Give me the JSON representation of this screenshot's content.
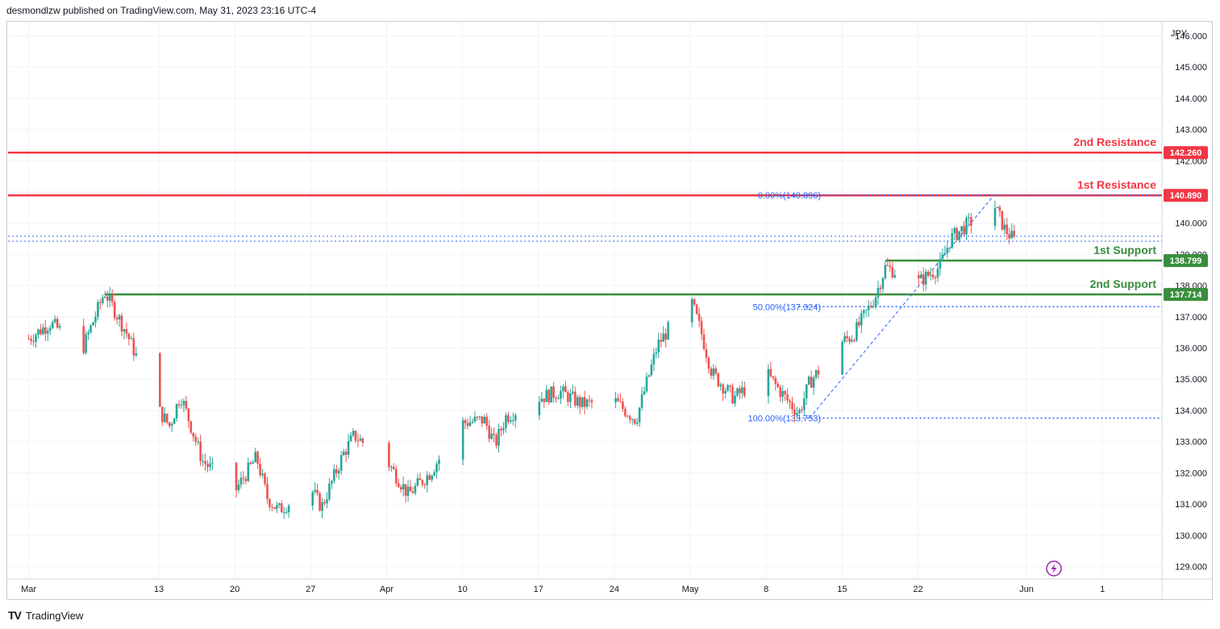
{
  "header": {
    "text": "desmondlzw published on TradingView.com, May 31, 2023 23:16 UTC-4"
  },
  "footer": {
    "logo_icon": "tradingview-logo-icon",
    "brand": "TradingView"
  },
  "colors": {
    "up": "#26a69a",
    "down": "#ef5350",
    "resistance": "#f23645",
    "support": "#388e3c",
    "fib": "#2962ff",
    "grid": "#f0f3fa",
    "text": "#131722"
  },
  "chart_data": {
    "type": "candlestick",
    "symbol_currency": "JPY",
    "ylim": [
      128.6,
      146.45
    ],
    "y_ticks": [
      "146.000",
      "145.000",
      "144.000",
      "143.000",
      "142.000",
      "141.000",
      "140.000",
      "139.000",
      "138.000",
      "137.000",
      "136.000",
      "135.000",
      "134.000",
      "133.000",
      "132.000",
      "131.000",
      "130.000",
      "129.000"
    ],
    "x_ticks": [
      "Mar",
      "13",
      "20",
      "27",
      "Apr",
      "10",
      "17",
      "24",
      "May",
      "8",
      "15",
      "22",
      "Jun",
      "1"
    ],
    "levels": [
      {
        "label": "2nd Resistance",
        "value": 142.26,
        "tag": "142.260",
        "kind": "resistance"
      },
      {
        "label": "1st Resistance",
        "value": 140.89,
        "tag": "140.890",
        "kind": "resistance"
      },
      {
        "label": "1st Support",
        "value": 138.799,
        "tag": "138.799",
        "kind": "support"
      },
      {
        "label": "2nd Support",
        "value": 137.714,
        "tag": "137.714",
        "kind": "support"
      }
    ],
    "fibonacci": [
      {
        "label": "0.00%(140.896)",
        "value": 140.896
      },
      {
        "label": "50.00%(137.324)",
        "value": 137.324
      },
      {
        "label": "100.00%(133.753)",
        "value": 133.753
      }
    ],
    "current_price_band": [
      139.42,
      139.58
    ],
    "lightning_icon": "lightning-icon",
    "price_path": [
      [
        "Mar 1",
        136.3
      ],
      [
        "Mar 3",
        136.8
      ],
      [
        "Mar 6",
        136.0
      ],
      [
        "Mar 8",
        137.8
      ],
      [
        "Mar 10",
        136.5
      ],
      [
        "Mar 13",
        134.0
      ],
      [
        "Mar 14",
        133.5
      ],
      [
        "Mar 15",
        134.5
      ],
      [
        "Mar 17",
        132.4
      ],
      [
        "Mar 20",
        131.4
      ],
      [
        "Mar 22",
        132.5
      ],
      [
        "Mar 23",
        131.2
      ],
      [
        "Mar 24",
        130.8
      ],
      [
        "Mar 27",
        131.5
      ],
      [
        "Mar 28",
        130.9
      ],
      [
        "Mar 30",
        132.6
      ],
      [
        "Mar 31",
        133.2
      ],
      [
        "Apr 3",
        132.4
      ],
      [
        "Apr 5",
        131.3
      ],
      [
        "Apr 7",
        132.0
      ],
      [
        "Apr 10",
        133.6
      ],
      [
        "Apr 12",
        133.7
      ],
      [
        "Apr 13",
        132.9
      ],
      [
        "Apr 14",
        133.8
      ],
      [
        "Apr 17",
        134.4
      ],
      [
        "Apr 19",
        134.6
      ],
      [
        "Apr 21",
        134.2
      ],
      [
        "Apr 24",
        134.3
      ],
      [
        "Apr 26",
        133.7
      ],
      [
        "Apr 28",
        136.1
      ],
      [
        "May 1",
        137.6
      ],
      [
        "May 2",
        136.5
      ],
      [
        "May 3",
        135.2
      ],
      [
        "May 5",
        134.4
      ],
      [
        "May 8",
        135.2
      ],
      [
        "May 10",
        134.3
      ],
      [
        "May 11",
        133.9
      ],
      [
        "May 12",
        134.9
      ],
      [
        "May 15",
        136.2
      ],
      [
        "May 16",
        136.4
      ],
      [
        "May 18",
        137.6
      ],
      [
        "May 19",
        138.6
      ],
      [
        "May 22",
        138.1
      ],
      [
        "May 24",
        138.6
      ],
      [
        "May 25",
        139.5
      ],
      [
        "May 26",
        139.8
      ],
      [
        "May 29",
        140.6
      ],
      [
        "May 30",
        139.8
      ],
      [
        "May 31",
        139.4
      ]
    ]
  }
}
